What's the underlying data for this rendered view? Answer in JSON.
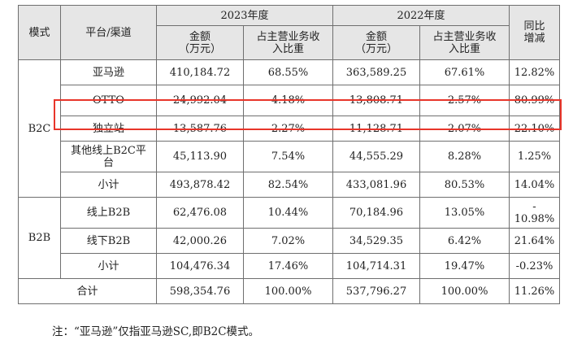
{
  "headers": {
    "mode": "模式",
    "channel": "平台/渠道",
    "year2023": "2023年度",
    "year2022": "2022年度",
    "yoy": "同比\n增减",
    "amount": "金额\n（万元）",
    "share": "占主营业务收\n入比重"
  },
  "groups": [
    {
      "mode": "B2C",
      "rows": [
        {
          "channel": "亚马逊",
          "a2023": "410,184.72",
          "s2023": "68.55%",
          "a2022": "363,589.25",
          "s2022": "67.61%",
          "yoy": "12.82%"
        },
        {
          "channel": "OTTO",
          "a2023": "24,992.04",
          "s2023": "4.18%",
          "a2022": "13,808.71",
          "s2022": "2.57%",
          "yoy": "80.99%"
        },
        {
          "channel": "独立站",
          "a2023": "13,587.76",
          "s2023": "2.27%",
          "a2022": "11,128.71",
          "s2022": "2.07%",
          "yoy": "22.10%"
        },
        {
          "channel": "其他线上B2C平\n台",
          "a2023": "45,113.90",
          "s2023": "7.54%",
          "a2022": "44,555.29",
          "s2022": "8.28%",
          "yoy": "1.25%"
        },
        {
          "channel": "小计",
          "a2023": "493,878.42",
          "s2023": "82.54%",
          "a2022": "433,081.96",
          "s2022": "80.53%",
          "yoy": "14.04%"
        }
      ]
    },
    {
      "mode": "B2B",
      "rows": [
        {
          "channel": "线上B2B",
          "a2023": "62,476.08",
          "s2023": "10.44%",
          "a2022": "70,184.96",
          "s2022": "13.05%",
          "yoy": "-\n10.98%"
        },
        {
          "channel": "线下B2B",
          "a2023": "42,000.26",
          "s2023": "7.02%",
          "a2022": "34,529.35",
          "s2022": "6.42%",
          "yoy": "21.64%"
        },
        {
          "channel": "小计",
          "a2023": "104,476.34",
          "s2023": "17.46%",
          "a2022": "104,714.31",
          "s2022": "19.47%",
          "yoy": "-0.23%"
        }
      ]
    }
  ],
  "total": {
    "label": "合计",
    "a2023": "598,354.76",
    "s2023": "100.00%",
    "a2022": "537,796.27",
    "s2022": "100.00%",
    "yoy": "11.26%"
  },
  "note": "注：“亚马逊”仅指亚马逊SC,即B2C模式。",
  "highlight_color": "#e8352a"
}
